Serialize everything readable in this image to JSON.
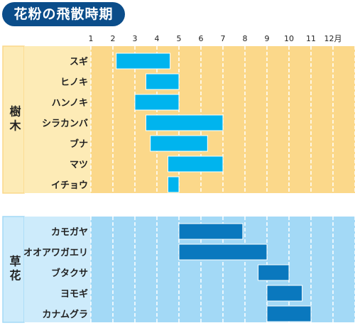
{
  "chart_data": {
    "type": "bar",
    "title": "花粉の飛散時期",
    "x_ticks": [
      "1",
      "2",
      "3",
      "4",
      "5",
      "6",
      "7",
      "8",
      "9",
      "10",
      "11",
      "12月"
    ],
    "xlim": [
      1,
      13
    ],
    "grid": true,
    "groups": [
      {
        "name": "樹木",
        "panel_color": "#fbd88a",
        "label_color": "#fdebb6",
        "bar_color": "#00b4ee",
        "items": [
          {
            "name": "スギ",
            "start": 2.15,
            "end": 4.6
          },
          {
            "name": "ヒノキ",
            "start": 3.5,
            "end": 5.0
          },
          {
            "name": "ハンノキ",
            "start": 3.0,
            "end": 5.0
          },
          {
            "name": "シラカンバ",
            "start": 3.5,
            "end": 7.0
          },
          {
            "name": "ブナ",
            "start": 3.7,
            "end": 6.3
          },
          {
            "name": "マツ",
            "start": 4.5,
            "end": 7.0
          },
          {
            "name": "イチョウ",
            "start": 4.5,
            "end": 5.0
          }
        ]
      },
      {
        "name": "草花",
        "panel_color": "#a3d9f6",
        "label_color": "#cdebfb",
        "bar_color": "#0a78be",
        "items": [
          {
            "name": "カモガヤ",
            "start": 5.0,
            "end": 7.9
          },
          {
            "name": "オオアワガエリ",
            "start": 5.0,
            "end": 9.0
          },
          {
            "name": "ブタクサ",
            "start": 8.6,
            "end": 10.0
          },
          {
            "name": "ヨモギ",
            "start": 9.0,
            "end": 10.6
          },
          {
            "name": "カナムグラ",
            "start": 9.0,
            "end": 11.0
          }
        ]
      }
    ]
  }
}
